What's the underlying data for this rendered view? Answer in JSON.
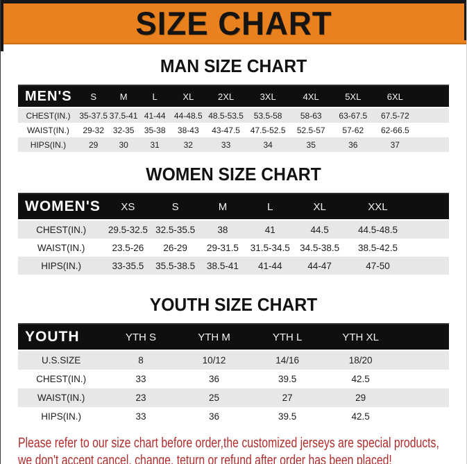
{
  "title": "SIZE CHART",
  "sections": [
    {
      "heading": "MAN SIZE CHART",
      "table": {
        "header": [
          "MEN'S",
          "S",
          "M",
          "L",
          "XL",
          "2XL",
          "3XL",
          "4XL",
          "5XL",
          "6XL"
        ],
        "rows": [
          [
            "CHEST(IN.)",
            "35-37.5",
            "37.5-41",
            "41-44",
            "44-48.5",
            "48.5-53.5",
            "53.5-58",
            "58-63",
            "63-67.5",
            "67.5-72"
          ],
          [
            "WAIST(IN.)",
            "29-32",
            "32-35",
            "35-38",
            "38-43",
            "43-47.5",
            "47.5-52.5",
            "52.5-57",
            "57-62",
            "62-66.5"
          ],
          [
            "HIPS(IN.)",
            "29",
            "30",
            "31",
            "32",
            "33",
            "34",
            "35",
            "36",
            "37"
          ]
        ]
      }
    },
    {
      "heading": "WOMEN SIZE CHART",
      "table": {
        "header": [
          "WOMEN'S",
          "XS",
          "S",
          "M",
          "L",
          "XL",
          "XXL"
        ],
        "rows": [
          [
            "CHEST(IN.)",
            "29.5-32.5",
            "32.5-35.5",
            "38",
            "41",
            "44.5",
            "44.5-48.5"
          ],
          [
            "WAIST(IN.)",
            "23.5-26",
            "26-29",
            "29-31.5",
            "31.5-34.5",
            "34.5-38.5",
            "38.5-42.5"
          ],
          [
            "HIPS(IN.)",
            "33-35.5",
            "35.5-38.5",
            "38.5-41",
            "41-44",
            "44-47",
            "47-50"
          ]
        ]
      }
    },
    {
      "heading": "YOUTH SIZE CHART",
      "table": {
        "header": [
          "YOUTH",
          "YTH S",
          "YTH M",
          "YTH L",
          "YTH XL"
        ],
        "rows": [
          [
            "U.S.SIZE",
            "8",
            "10/12",
            "14/16",
            "18/20"
          ],
          [
            "CHEST(IN.)",
            "33",
            "36",
            "39.5",
            "42.5"
          ],
          [
            "WAIST(IN.)",
            "23",
            "25",
            "27",
            "29"
          ],
          [
            "HIPS(IN.)",
            "33",
            "36",
            "39.5",
            "42.5"
          ]
        ]
      }
    }
  ],
  "footer": {
    "line1": "Please refer to our size chart before order,the customized jerseys are special products,",
    "line2": "we don't accept cancel, change, teturn or refund after order has been placed!"
  },
  "colors": {
    "banner_orange": "#E8811E",
    "header_black": "#0F0F0F",
    "row_gray": "#E7E7E7",
    "footer_red": "#B02C2C"
  }
}
